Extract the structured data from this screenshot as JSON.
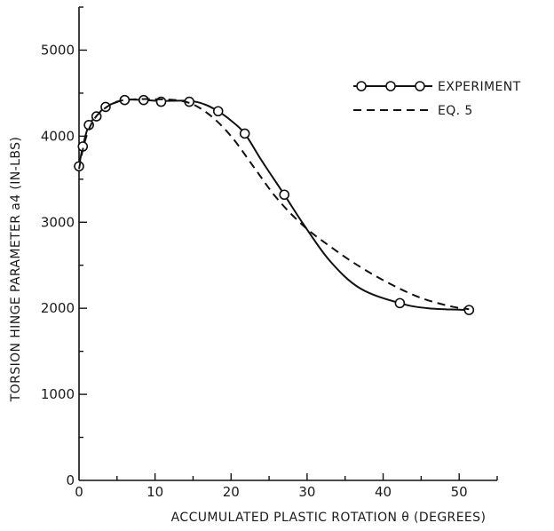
{
  "chart_data": {
    "type": "line",
    "title": "",
    "xlabel": "ACCUMULATED PLASTIC ROTATION θ (DEGREES)",
    "ylabel": "TORSION HINGE PARAMETER a4 (IN-LBS)",
    "xlim": [
      0,
      55
    ],
    "ylim": [
      0,
      5500
    ],
    "x_ticks": [
      0,
      10,
      20,
      30,
      40,
      50
    ],
    "x_tick_labels": [
      "0",
      "10",
      "20",
      "30",
      "40",
      "50"
    ],
    "y_ticks": [
      0,
      1000,
      2000,
      3000,
      4000,
      5000
    ],
    "y_tick_labels": [
      "0",
      "1000",
      "2000",
      "3000",
      "4000",
      "5000"
    ],
    "grid": false,
    "legend_position": "top-right",
    "series": [
      {
        "name": "EXPERIMENT",
        "style": "solid line with open circle markers",
        "color": "#111111",
        "points": [
          [
            0,
            3650
          ],
          [
            0.5,
            3880
          ],
          [
            1.3,
            4130
          ],
          [
            2.3,
            4230
          ],
          [
            3.5,
            4340
          ],
          [
            6,
            4420
          ],
          [
            8.5,
            4420
          ],
          [
            10.8,
            4400
          ],
          [
            14.5,
            4400
          ],
          [
            18.3,
            4290
          ],
          [
            21.8,
            4030
          ],
          [
            27,
            3320
          ],
          [
            42.2,
            2060
          ],
          [
            51.3,
            1980
          ]
        ],
        "curve": [
          [
            0,
            3650
          ],
          [
            0.5,
            3880
          ],
          [
            1.3,
            4130
          ],
          [
            2.3,
            4230
          ],
          [
            3.5,
            4340
          ],
          [
            6,
            4420
          ],
          [
            8.5,
            4420
          ],
          [
            10.8,
            4410
          ],
          [
            14.5,
            4410
          ],
          [
            16.5,
            4370
          ],
          [
            18.3,
            4290
          ],
          [
            20,
            4180
          ],
          [
            21.8,
            4030
          ],
          [
            24,
            3720
          ],
          [
            27,
            3320
          ],
          [
            29.5,
            2980
          ],
          [
            33,
            2550
          ],
          [
            37,
            2230
          ],
          [
            42.2,
            2060
          ],
          [
            46,
            2000
          ],
          [
            51.3,
            1980
          ]
        ]
      },
      {
        "name": "EQ. 5",
        "style": "dashed line",
        "color": "#111111",
        "curve": [
          [
            0,
            3620
          ],
          [
            0.8,
            3950
          ],
          [
            2,
            4200
          ],
          [
            4,
            4360
          ],
          [
            6,
            4420
          ],
          [
            10,
            4430
          ],
          [
            14,
            4400
          ],
          [
            17,
            4260
          ],
          [
            20,
            4000
          ],
          [
            23,
            3640
          ],
          [
            26,
            3280
          ],
          [
            29.5,
            2960
          ],
          [
            33,
            2720
          ],
          [
            37,
            2480
          ],
          [
            41,
            2280
          ],
          [
            45,
            2120
          ],
          [
            49,
            2020
          ],
          [
            51.3,
            1990
          ]
        ]
      }
    ]
  }
}
